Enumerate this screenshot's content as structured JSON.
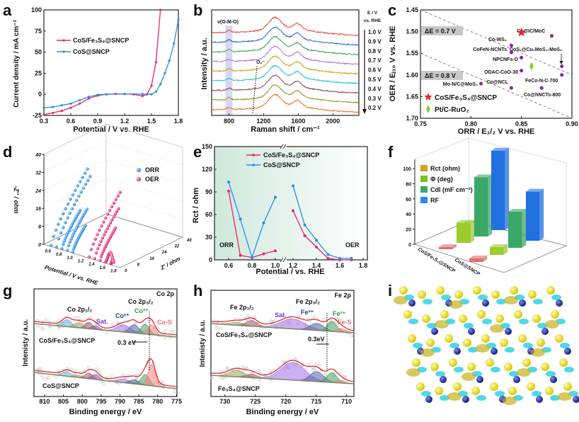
{
  "panel_letters": [
    "a",
    "b",
    "c",
    "d",
    "e",
    "f",
    "g",
    "h",
    "i"
  ],
  "chart_data": [
    {
      "panel": "a",
      "type": "line",
      "xlabel": "Potential / V vs. RHE",
      "ylabel": "Current density / mA cm⁻²",
      "xlim": [
        0.3,
        1.8
      ],
      "ylim": [
        -25,
        100
      ],
      "xticks": [
        "0.3",
        "0.6",
        "0.9",
        "1.2",
        "1.5",
        "1.8"
      ],
      "yticks": [
        "-25",
        "0",
        "25",
        "50",
        "75",
        "100"
      ],
      "series": [
        {
          "name": "CoS/Fe₃S₄@SNCP",
          "color": "#e8246e",
          "points": [
            [
              0.3,
              -24
            ],
            [
              0.4,
              -22
            ],
            [
              0.5,
              -19.5
            ],
            [
              0.6,
              -16
            ],
            [
              0.7,
              -11
            ],
            [
              0.8,
              -5
            ],
            [
              0.9,
              -1.5
            ],
            [
              1.0,
              0
            ],
            [
              1.1,
              0.5
            ],
            [
              1.2,
              0.5
            ],
            [
              1.3,
              0
            ],
            [
              1.4,
              -2
            ],
            [
              1.45,
              0
            ],
            [
              1.5,
              10
            ],
            [
              1.55,
              38
            ],
            [
              1.6,
              100
            ]
          ]
        },
        {
          "name": "CoS@SNCP",
          "color": "#2a8ee0",
          "points": [
            [
              0.3,
              -16
            ],
            [
              0.4,
              -15
            ],
            [
              0.5,
              -13
            ],
            [
              0.6,
              -11
            ],
            [
              0.7,
              -7
            ],
            [
              0.8,
              -3
            ],
            [
              0.9,
              -0.5
            ],
            [
              1.0,
              0
            ],
            [
              1.2,
              0.5
            ],
            [
              1.4,
              0.3
            ],
            [
              1.5,
              0
            ],
            [
              1.55,
              3
            ],
            [
              1.6,
              12
            ],
            [
              1.65,
              25
            ],
            [
              1.7,
              40
            ],
            [
              1.75,
              60
            ],
            [
              1.8,
              88
            ]
          ]
        }
      ]
    },
    {
      "panel": "b",
      "type": "line",
      "xlabel": "Raman shift / cm⁻¹",
      "ylabel": "Intensity / a.u.",
      "xlim": [
        600,
        2300
      ],
      "xticks": [
        "800",
        "1200",
        "1600",
        "2000"
      ],
      "band_label": "ν(O-M-O)",
      "band_range": [
        760,
        840
      ],
      "marker_label": "O₂⁻",
      "legend_title": "E / V",
      "legend_subtitle": "vs. RHE",
      "peaks": [
        1330,
        1590
      ],
      "series": [
        {
          "name": "1.0 V",
          "color": "#e8403c"
        },
        {
          "name": "0.9 V",
          "color": "#2a62d8"
        },
        {
          "name": "0.8 V",
          "color": "#3aa05a"
        },
        {
          "name": "0.7 V",
          "color": "#b070e0"
        },
        {
          "name": "0.6 V",
          "color": "#c8a018"
        },
        {
          "name": "0.5 V",
          "color": "#22c0c8"
        },
        {
          "name": "0.4 V",
          "color": "#8a4a50"
        },
        {
          "name": "0.3 V",
          "color": "#8a9a20"
        },
        {
          "name": "0.2 V",
          "color": "#f07020"
        }
      ]
    },
    {
      "panel": "c",
      "type": "scatter",
      "xlabel": "ORR / E₁/₂ V vs. RHE",
      "ylabel": "OER / Eⱼ₁₀ V vs. RHE",
      "xlim": [
        0.75,
        0.9
      ],
      "ylim": [
        1.45,
        1.7
      ],
      "xticks": [
        "0.75",
        "0.80",
        "0.85",
        "0.90"
      ],
      "yticks": [
        "1.45",
        "1.50",
        "1.55",
        "1.60",
        "1.65",
        "1.70"
      ],
      "guides": [
        {
          "label": "ΔE = 0.7 V",
          "delta": 0.7
        },
        {
          "label": "ΔE = 0.8 V",
          "delta": 0.8
        }
      ],
      "points": [
        {
          "label": "Co@IC/MoC",
          "x": 0.88,
          "y": 1.51
        },
        {
          "label": "Co-WS₂",
          "x": 0.84,
          "y": 1.532
        },
        {
          "label": "CoFeN-NCNTs",
          "x": 0.84,
          "y": 1.548
        },
        {
          "label": "CoSₓ@Cu₂MoS₄-MoS₂",
          "x": 0.89,
          "y": 1.58
        },
        {
          "label": "NPCNFs-O",
          "x": 0.85,
          "y": 1.56
        },
        {
          "label": "ODAC-CoO-30",
          "x": 0.85,
          "y": 1.59
        },
        {
          "label": "FeCo-N-C-700",
          "x": 0.89,
          "y": 1.6
        },
        {
          "label": "Mo-N/C@MoS₂",
          "x": 0.81,
          "y": 1.62
        },
        {
          "label": "Co@NCL",
          "x": 0.84,
          "y": 1.63
        },
        {
          "label": "Co@hNCTs-800",
          "x": 0.87,
          "y": 1.63
        }
      ],
      "highlights": [
        {
          "label": "CoS/Fe₃S₄@SNCP",
          "x": 0.85,
          "y": 1.502,
          "marker": "star",
          "color": "#e0282c"
        },
        {
          "label": "Pt/C-RuO₂",
          "x": 0.86,
          "y": 1.58,
          "marker": "diamond",
          "color": "#8ad030"
        }
      ],
      "point_color": "#8a2aa8"
    },
    {
      "panel": "d",
      "type": "scatter3d",
      "xlabel": "Potential / V vs. RHE",
      "ylabel": "Z' / ohm",
      "zlabel": "-Z'' / ohm",
      "zticks": [
        "0",
        "8",
        "16",
        "24",
        "32",
        "40"
      ],
      "xticks": [
        "0.6",
        "0.8",
        "1.0",
        "1.2",
        "1.4",
        "1.6",
        "1.8"
      ],
      "yticks": [
        "0",
        "8",
        "16",
        "24",
        "32",
        "40"
      ],
      "series": [
        {
          "name": "ORR",
          "color": "#2a8ee0",
          "potentials": [
            0.6,
            0.7,
            0.8,
            0.9,
            1.0
          ],
          "max_z": [
            26,
            24,
            13,
            14,
            9
          ]
        },
        {
          "name": "OER",
          "color": "#e0287a",
          "potentials": [
            1.3,
            1.4,
            1.5,
            1.6,
            1.7
          ],
          "max_z": [
            22,
            17,
            11,
            5,
            2
          ]
        }
      ]
    },
    {
      "panel": "e",
      "type": "line",
      "xlabel": "Potential / vs. RHE",
      "ylabel": "Rct / ohm",
      "ylim": [
        0,
        150
      ],
      "xticks": [
        "0.6",
        "0.8",
        "1.0",
        "1.2",
        "1.4",
        "1.6",
        "1.8"
      ],
      "yticks": [
        "0",
        "30",
        "60",
        "90",
        "120",
        "150"
      ],
      "region_labels": [
        "ORR",
        "OER"
      ],
      "series": [
        {
          "name": "CoS/Fe₃S₄@SNCP",
          "color": "#e8246e",
          "orr": [
            [
              0.6,
              91
            ],
            [
              0.7,
              6
            ],
            [
              0.8,
              3
            ],
            [
              0.9,
              8
            ],
            [
              1.0,
              12
            ]
          ],
          "oer": [
            [
              1.2,
              65
            ],
            [
              1.3,
              32
            ],
            [
              1.4,
              17
            ],
            [
              1.5,
              2
            ],
            [
              1.6,
              0
            ],
            [
              1.7,
              0
            ]
          ]
        },
        {
          "name": "CoS@SNCP",
          "color": "#2a8ee0",
          "orr": [
            [
              0.6,
              103
            ],
            [
              0.7,
              54
            ],
            [
              0.8,
              3
            ],
            [
              0.9,
              49
            ],
            [
              1.0,
              83
            ]
          ],
          "oer": [
            [
              1.2,
              98
            ],
            [
              1.3,
              46
            ],
            [
              1.4,
              26
            ],
            [
              1.5,
              7
            ],
            [
              1.6,
              2
            ],
            [
              1.7,
              2
            ]
          ]
        }
      ]
    },
    {
      "panel": "f",
      "type": "bar3d",
      "categories": [
        "CoS/Fe₃S₄@SNCP",
        "CoS@SNCP"
      ],
      "zticks": [
        "0",
        "20",
        "40",
        "60",
        "80",
        "100"
      ],
      "series": [
        {
          "name": "Rct (ohm)",
          "color": "#e07070",
          "legend_color": "#d0a020",
          "values": [
            3,
            5
          ]
        },
        {
          "name": "Φ (deg)",
          "color": "#9ccc30",
          "legend_color": "#7ac020",
          "values": [
            28,
            11
          ]
        },
        {
          "name": "Cdl (mF cm⁻²)",
          "color": "#3aa868",
          "legend_color": "#3aa868",
          "values": [
            82,
            50
          ]
        },
        {
          "name": "RF",
          "color": "#2070e0",
          "legend_color": "#2a8af0",
          "values": [
            110,
            68
          ]
        }
      ]
    },
    {
      "panel": "g",
      "type": "area",
      "title": "Co 2p",
      "xlabel": "Binding energy / eV",
      "ylabel": "Intenisty / a.u.",
      "xlim": [
        812.8,
        774.9
      ],
      "xticks": [
        "810",
        "805",
        "800",
        "795",
        "790",
        "785",
        "780",
        "775"
      ],
      "labels": {
        "p12": "Co 2p₁/₂",
        "p32": "Co 2p₃/₂",
        "sat": "Sat.",
        "co2": "Co²⁺",
        "co3": "Co³⁺",
        "cos": "Co-S",
        "shift": "0.3 eV"
      },
      "samples": [
        "CoS/Fe₃S₄@SNCP",
        "CoS@SNCP"
      ],
      "components": [
        {
          "name": "2p1/2-a",
          "center": 804,
          "sigma": 1.2,
          "color": "#6aaee0",
          "heights": [
            10,
            6
          ]
        },
        {
          "name": "2p1/2-b",
          "center": 801,
          "sigma": 1.2,
          "color": "#a0a060",
          "heights": [
            7,
            3
          ]
        },
        {
          "name": "2p1/2-c",
          "center": 798.2,
          "sigma": 1.0,
          "color": "#a05868",
          "heights": [
            9,
            8
          ]
        },
        {
          "name": "2p1/2-d",
          "center": 796.5,
          "sigma": 1.0,
          "color": "#8a50b0",
          "heights": [
            5,
            7
          ]
        },
        {
          "name": "Sat.",
          "center": 789,
          "sigma": 1.8,
          "color": "#a070e8",
          "heights": [
            10,
            5
          ]
        },
        {
          "name": "Co²⁺",
          "center": 786.2,
          "sigma": 1.2,
          "color": "#5060a8",
          "heights": [
            12,
            6
          ]
        },
        {
          "name": "Co³⁺",
          "center": 783.3,
          "sigma": 1.1,
          "color": "#40a060",
          "heights": [
            14,
            15
          ]
        },
        {
          "name": "Co-S",
          "center": 781.6,
          "sigma": 1.0,
          "color": "#f08080",
          "heights": [
            14,
            30
          ]
        }
      ]
    },
    {
      "panel": "h",
      "type": "area",
      "title": "Fe 2p",
      "xlabel": "Binding energy / eV",
      "ylabel": "Intenisty / a.u.",
      "xlim": [
        732.3,
        708.8
      ],
      "xticks": [
        "730",
        "725",
        "720",
        "715",
        "710"
      ],
      "labels": {
        "p12": "Fe 2p₁/₂",
        "p32": "Fe 2p₃/₂",
        "sat": "Sat.",
        "fe3": "Fe³⁺",
        "fe2": "Fe²⁺",
        "fes": "Fe-S",
        "shift": "0.3eV"
      },
      "samples": [
        "CoS/Fe₃S₄@SNCP",
        "Fe₃S₄@SNCP"
      ],
      "components": [
        {
          "name": "2p1/2-a",
          "center": 728,
          "sigma": 1.3,
          "color": "#a0a060",
          "heights": [
            4,
            9
          ]
        },
        {
          "name": "2p1/2-b",
          "center": 725.6,
          "sigma": 0.9,
          "color": "#a05868",
          "heights": [
            8,
            5
          ]
        },
        {
          "name": "Sat.",
          "center": 718.8,
          "sigma": 2.0,
          "color": "#a070e8",
          "heights": [
            14,
            25
          ]
        },
        {
          "name": "Fe³⁺",
          "center": 714.9,
          "sigma": 1.1,
          "color": "#5060a8",
          "heights": [
            10,
            14
          ]
        },
        {
          "name": "Fe²⁺",
          "center": 712.4,
          "sigma": 0.8,
          "color": "#40a060",
          "heights": [
            14,
            14
          ]
        },
        {
          "name": "Fe-S",
          "center": 711,
          "sigma": 0.8,
          "color": "#f08080",
          "heights": [
            5,
            4
          ]
        }
      ]
    }
  ]
}
